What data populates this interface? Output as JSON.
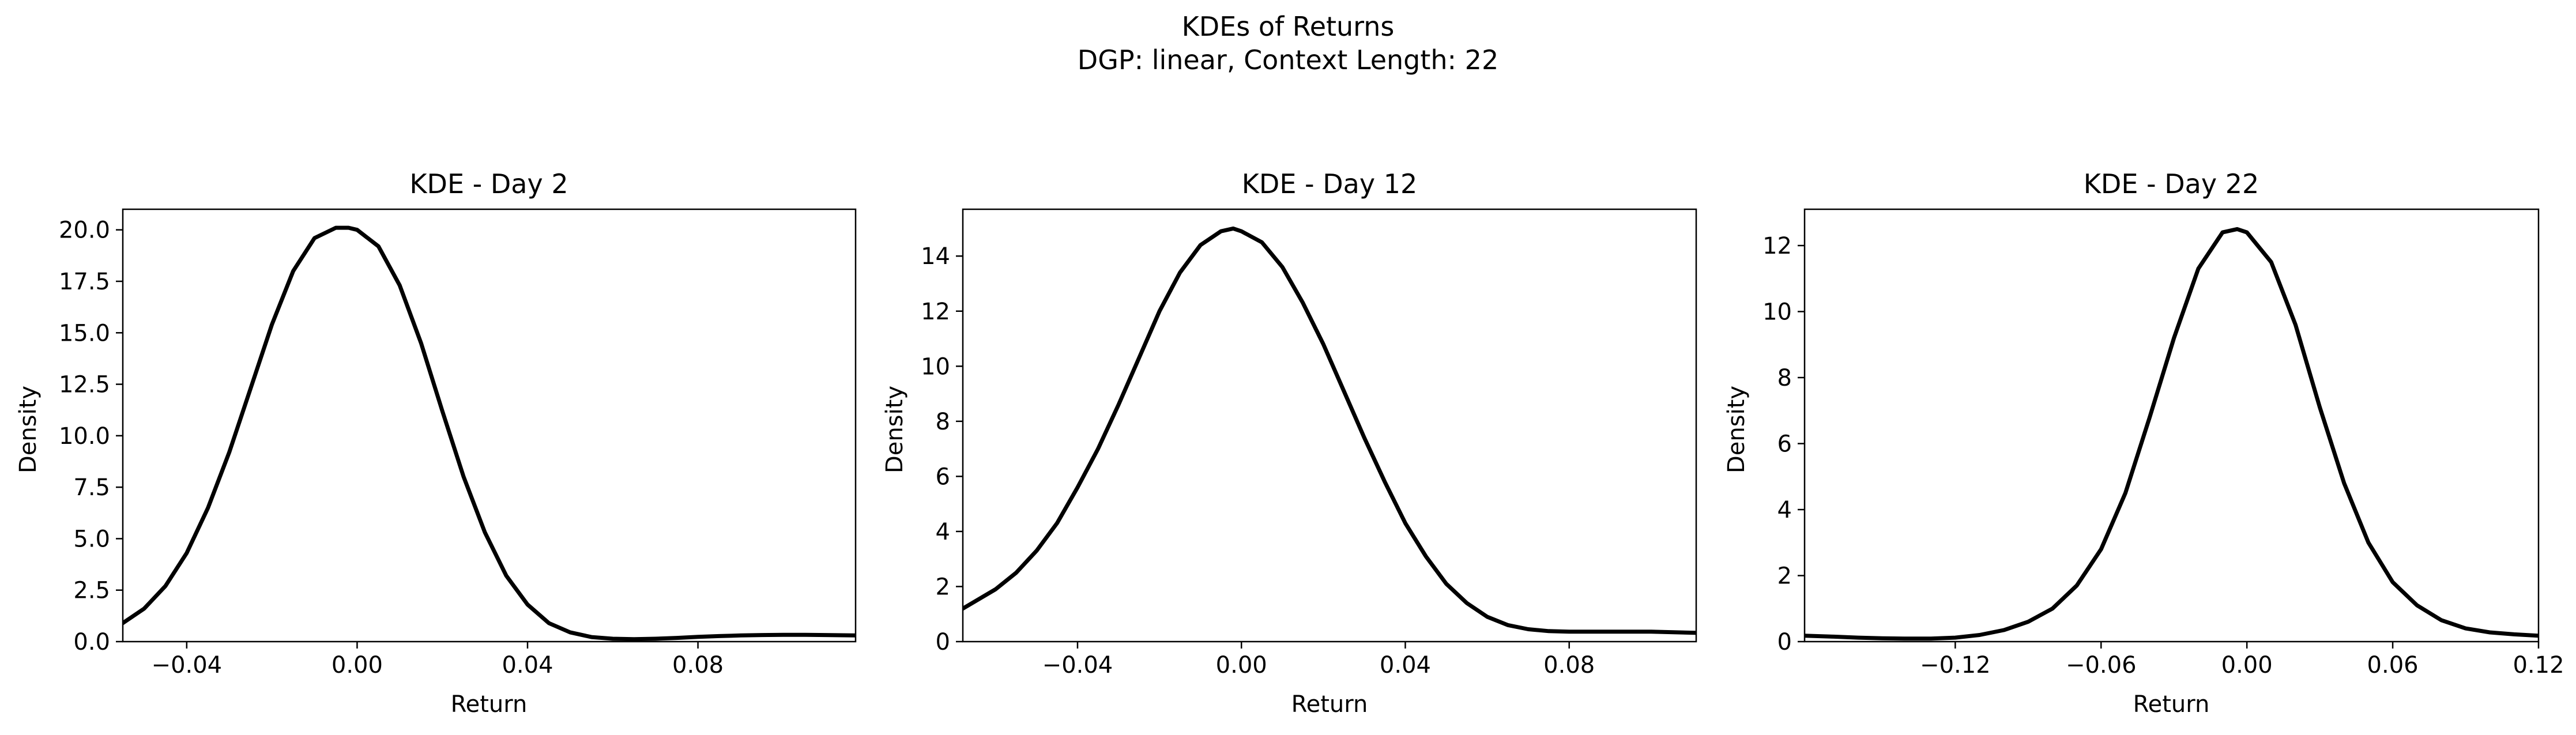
{
  "figure": {
    "title": "KDEs of Returns",
    "subtitle": "DGP: linear, Context Length: 22"
  },
  "chart_data": [
    {
      "type": "line",
      "title": "KDE - Day 2",
      "xlabel": "Return",
      "ylabel": "Density",
      "xlim": [
        -0.055,
        0.117
      ],
      "ylim": [
        0,
        21
      ],
      "xticks": [
        -0.04,
        0.0,
        0.04,
        0.08
      ],
      "xtick_labels": [
        "−0.04",
        "0.00",
        "0.04",
        "0.08"
      ],
      "yticks": [
        0,
        2.5,
        5,
        7.5,
        10,
        12.5,
        15,
        17.5,
        20
      ],
      "ytick_labels": [
        "0.0",
        "2.5",
        "5.0",
        "7.5",
        "10.0",
        "12.5",
        "15.0",
        "17.5",
        "20.0"
      ],
      "grid": false,
      "series": [
        {
          "color": "#000000",
          "x": [
            -0.055,
            -0.05,
            -0.045,
            -0.04,
            -0.035,
            -0.03,
            -0.025,
            -0.02,
            -0.015,
            -0.01,
            -0.005,
            -0.002,
            0.0,
            0.005,
            0.01,
            0.015,
            0.02,
            0.025,
            0.03,
            0.035,
            0.04,
            0.045,
            0.05,
            0.055,
            0.06,
            0.065,
            0.07,
            0.075,
            0.08,
            0.085,
            0.09,
            0.095,
            0.1,
            0.105,
            0.11,
            0.117
          ],
          "y": [
            0.9,
            1.6,
            2.7,
            4.3,
            6.5,
            9.2,
            12.3,
            15.4,
            18.0,
            19.6,
            20.1,
            20.1,
            20.0,
            19.2,
            17.3,
            14.5,
            11.2,
            8.0,
            5.3,
            3.2,
            1.8,
            0.9,
            0.45,
            0.22,
            0.14,
            0.12,
            0.14,
            0.18,
            0.23,
            0.27,
            0.3,
            0.32,
            0.33,
            0.33,
            0.32,
            0.3
          ]
        }
      ]
    },
    {
      "type": "line",
      "title": "KDE - Day 12",
      "xlabel": "Return",
      "ylabel": "Density",
      "xlim": [
        -0.068,
        0.111
      ],
      "ylim": [
        0,
        15.7
      ],
      "xticks": [
        -0.04,
        0.0,
        0.04,
        0.08
      ],
      "xtick_labels": [
        "−0.04",
        "0.00",
        "0.04",
        "0.08"
      ],
      "yticks": [
        0,
        2,
        4,
        6,
        8,
        10,
        12,
        14
      ],
      "ytick_labels": [
        "0",
        "2",
        "4",
        "6",
        "8",
        "10",
        "12",
        "14"
      ],
      "grid": false,
      "series": [
        {
          "color": "#000000",
          "x": [
            -0.068,
            -0.06,
            -0.055,
            -0.05,
            -0.045,
            -0.04,
            -0.035,
            -0.03,
            -0.025,
            -0.02,
            -0.015,
            -0.01,
            -0.005,
            -0.002,
            0.0,
            0.005,
            0.01,
            0.015,
            0.02,
            0.025,
            0.03,
            0.035,
            0.04,
            0.045,
            0.05,
            0.055,
            0.06,
            0.065,
            0.07,
            0.075,
            0.08,
            0.09,
            0.1,
            0.111
          ],
          "y": [
            1.2,
            1.9,
            2.5,
            3.3,
            4.3,
            5.6,
            7.0,
            8.6,
            10.3,
            12.0,
            13.4,
            14.4,
            14.9,
            15.0,
            14.9,
            14.5,
            13.6,
            12.3,
            10.8,
            9.1,
            7.4,
            5.8,
            4.3,
            3.1,
            2.1,
            1.4,
            0.9,
            0.6,
            0.45,
            0.38,
            0.36,
            0.36,
            0.36,
            0.32
          ]
        }
      ]
    },
    {
      "type": "line",
      "title": "KDE - Day 22",
      "xlabel": "Return",
      "ylabel": "Density",
      "xlim": [
        -0.182,
        0.12
      ],
      "ylim": [
        0,
        13.1
      ],
      "xticks": [
        -0.12,
        -0.06,
        0.0,
        0.06,
        0.12
      ],
      "xtick_labels": [
        "−0.12",
        "−0.06",
        "0.00",
        "0.06",
        "0.12"
      ],
      "yticks": [
        0,
        2,
        4,
        6,
        8,
        10,
        12
      ],
      "ytick_labels": [
        "0",
        "2",
        "4",
        "6",
        "8",
        "10",
        "12"
      ],
      "grid": false,
      "series": [
        {
          "color": "#000000",
          "x": [
            -0.182,
            -0.17,
            -0.16,
            -0.15,
            -0.14,
            -0.13,
            -0.12,
            -0.11,
            -0.1,
            -0.09,
            -0.08,
            -0.07,
            -0.06,
            -0.05,
            -0.04,
            -0.03,
            -0.02,
            -0.01,
            -0.004,
            0.0,
            0.01,
            0.02,
            0.03,
            0.04,
            0.05,
            0.06,
            0.07,
            0.08,
            0.09,
            0.1,
            0.11,
            0.12
          ],
          "y": [
            0.18,
            0.15,
            0.12,
            0.1,
            0.09,
            0.09,
            0.12,
            0.2,
            0.35,
            0.6,
            1.0,
            1.7,
            2.8,
            4.5,
            6.8,
            9.2,
            11.3,
            12.4,
            12.5,
            12.4,
            11.5,
            9.6,
            7.1,
            4.8,
            3.0,
            1.8,
            1.1,
            0.65,
            0.4,
            0.28,
            0.22,
            0.18
          ]
        }
      ]
    }
  ]
}
